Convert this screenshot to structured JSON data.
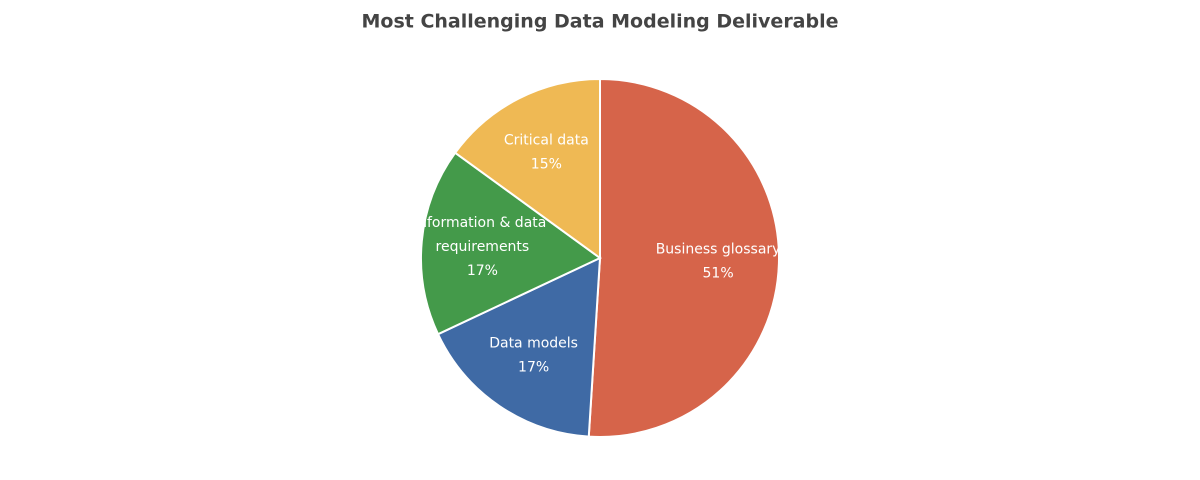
{
  "chart_data": {
    "type": "pie",
    "title": "Most Challenging Data Modeling Deliverable",
    "categories": [
      "Business glossary",
      "Data models",
      "Information & data requirements",
      "Critical data"
    ],
    "values": [
      51,
      17,
      17,
      15
    ],
    "value_labels": [
      "51%",
      "17%",
      "17%",
      "15%"
    ],
    "colors": [
      "#d6644a",
      "#3f6aa5",
      "#449a4a",
      "#efb954"
    ]
  }
}
